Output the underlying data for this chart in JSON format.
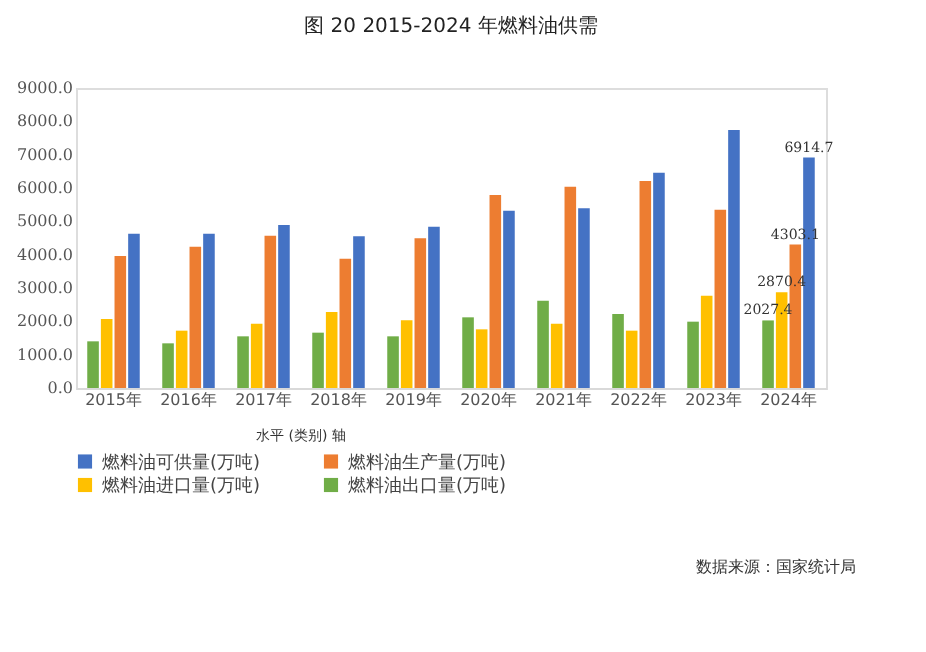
{
  "chart_data": {
    "type": "bar",
    "title": "图 20 2015-2024 年燃料油供需",
    "categories": [
      "2015年",
      "2016年",
      "2017年",
      "2018年",
      "2019年",
      "2020年",
      "2021年",
      "2022年",
      "2023年",
      "2024年"
    ],
    "series": [
      {
        "name": "燃料油出口量(万吨)",
        "color": "#70ad47",
        "values": [
          1400,
          1340,
          1550,
          1660,
          1550,
          2120,
          2620,
          2220,
          1990,
          2027.4
        ],
        "value_labels": [
          null,
          null,
          null,
          null,
          null,
          null,
          null,
          null,
          null,
          "2027.4"
        ]
      },
      {
        "name": "燃料油进口量(万吨)",
        "color": "#ffc000",
        "values": [
          2070,
          1720,
          1930,
          2280,
          2030,
          1760,
          1930,
          1720,
          2770,
          2870.4
        ],
        "value_labels": [
          null,
          null,
          null,
          null,
          null,
          null,
          null,
          null,
          null,
          "2870.4"
        ]
      },
      {
        "name": "燃料油生产量(万吨)",
        "color": "#ed7d31",
        "values": [
          3960,
          4240,
          4570,
          3880,
          4490,
          5790,
          6040,
          6210,
          5350,
          4303.1
        ],
        "value_labels": [
          null,
          null,
          null,
          null,
          null,
          null,
          null,
          null,
          null,
          "4303.1"
        ]
      },
      {
        "name": "燃料油可供量(万吨)",
        "color": "#4472c4",
        "values": [
          4630,
          4630,
          4890,
          4550,
          4840,
          5320,
          5390,
          6460,
          7740,
          6914.7
        ],
        "value_labels": [
          null,
          null,
          null,
          null,
          null,
          null,
          null,
          null,
          null,
          "6914.7"
        ]
      }
    ],
    "ylim": [
      0,
      9000
    ],
    "yticks": [
      {
        "value": 0,
        "label": "0.0"
      },
      {
        "value": 1000,
        "label": "1000.0"
      },
      {
        "value": 2000,
        "label": "2000.0"
      },
      {
        "value": 3000,
        "label": "3000.0"
      },
      {
        "value": 4000,
        "label": "4000.0"
      },
      {
        "value": 5000,
        "label": "5000.0"
      },
      {
        "value": 6000,
        "label": "6000.0"
      },
      {
        "value": 7000,
        "label": "7000.0"
      },
      {
        "value": 8000,
        "label": "8000.0"
      },
      {
        "value": 9000,
        "label": "9000.0"
      }
    ],
    "grid": false,
    "legend": "bottom",
    "annotations": [
      "水平 (类别) 轴",
      "数据来源：国家统计局"
    ]
  }
}
